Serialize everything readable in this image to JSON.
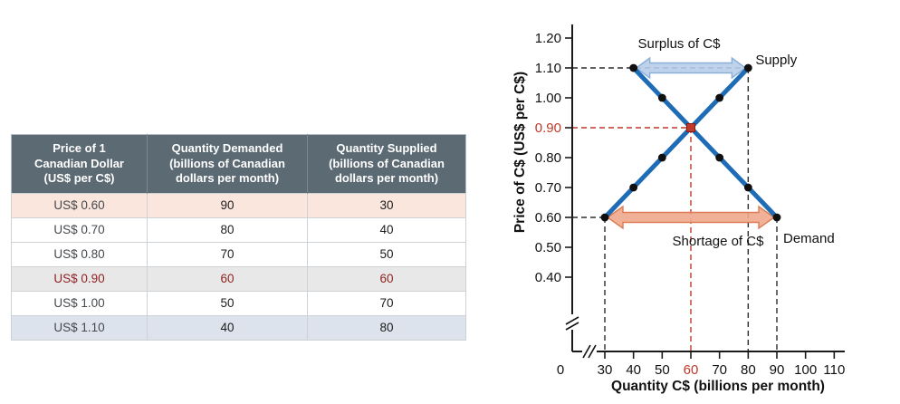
{
  "page": {
    "background": "#ffffff"
  },
  "table": {
    "headers": [
      "Price of 1\nCanadian Dollar\n(US$ per C$)",
      "Quantity Demanded\n(billions of Canadian\ndollars per month)",
      "Quantity Supplied\n(billions of Canadian\ndollars per month)"
    ],
    "rows": [
      {
        "price": "US$ 0.60",
        "demanded": "90",
        "supplied": "30",
        "highlight": "shortage"
      },
      {
        "price": "US$ 0.70",
        "demanded": "80",
        "supplied": "40",
        "highlight": "none"
      },
      {
        "price": "US$ 0.80",
        "demanded": "70",
        "supplied": "50",
        "highlight": "none"
      },
      {
        "price": "US$ 0.90",
        "demanded": "60",
        "supplied": "60",
        "highlight": "equilibrium"
      },
      {
        "price": "US$ 1.00",
        "demanded": "50",
        "supplied": "70",
        "highlight": "none"
      },
      {
        "price": "US$ 1.10",
        "demanded": "40",
        "supplied": "80",
        "highlight": "surplus"
      }
    ]
  },
  "chart_data": {
    "type": "line",
    "xlabel": "Quantity C$ (billions per month)",
    "ylabel": "Price of C$ (US$ per C$)",
    "x_ticks": [
      0,
      30,
      40,
      50,
      60,
      70,
      80,
      90,
      100,
      110
    ],
    "y_ticks": [
      0.4,
      0.5,
      0.6,
      0.7,
      0.8,
      0.9,
      1.0,
      1.1,
      1.2
    ],
    "xlim": [
      0,
      115
    ],
    "ylim": [
      0.35,
      1.25
    ],
    "axis_breaks": {
      "x": true,
      "y": true
    },
    "series": [
      {
        "name": "Supply",
        "points": [
          [
            30,
            0.6
          ],
          [
            40,
            0.7
          ],
          [
            50,
            0.8
          ],
          [
            60,
            0.9
          ],
          [
            70,
            1.0
          ],
          [
            80,
            1.1
          ]
        ]
      },
      {
        "name": "Demand",
        "points": [
          [
            40,
            1.1
          ],
          [
            50,
            1.0
          ],
          [
            60,
            0.9
          ],
          [
            70,
            0.8
          ],
          [
            80,
            0.7
          ],
          [
            90,
            0.6
          ]
        ]
      }
    ],
    "equilibrium": {
      "q": 60,
      "price": 0.9
    },
    "dashed_guides": [
      {
        "orient": "h",
        "price": 1.1,
        "to_q": 80,
        "color": "black"
      },
      {
        "orient": "h",
        "price": 0.6,
        "to_q": 30,
        "color": "black"
      },
      {
        "orient": "v",
        "q": 30,
        "from_price": 0.6,
        "color": "black"
      },
      {
        "orient": "v",
        "q": 80,
        "from_price": 1.1,
        "color": "black"
      },
      {
        "orient": "v",
        "q": 90,
        "from_price": 0.6,
        "color": "black"
      },
      {
        "orient": "h",
        "price": 0.9,
        "to_q": 60,
        "color": "red"
      },
      {
        "orient": "v",
        "q": 60,
        "from_price": 0.9,
        "color": "red"
      }
    ],
    "annotations": [
      {
        "name": "surplus-arrow",
        "label": "Surplus of C$",
        "at_price": 1.1,
        "from_q": 40,
        "to_q": 80,
        "fill": "#b7cde9",
        "stroke": "#8aafd7",
        "label_side": "above"
      },
      {
        "name": "shortage-arrow",
        "label": "Shortage of C$",
        "at_price": 0.6,
        "from_q": 30,
        "to_q": 90,
        "fill": "#efa78d",
        "stroke": "#dd7c52",
        "label_side": "below"
      }
    ],
    "colors": {
      "curve": "#1e6cb5",
      "point": "#101010",
      "equilibrium": "#c0392b",
      "axis": "#1a1a1a"
    }
  }
}
